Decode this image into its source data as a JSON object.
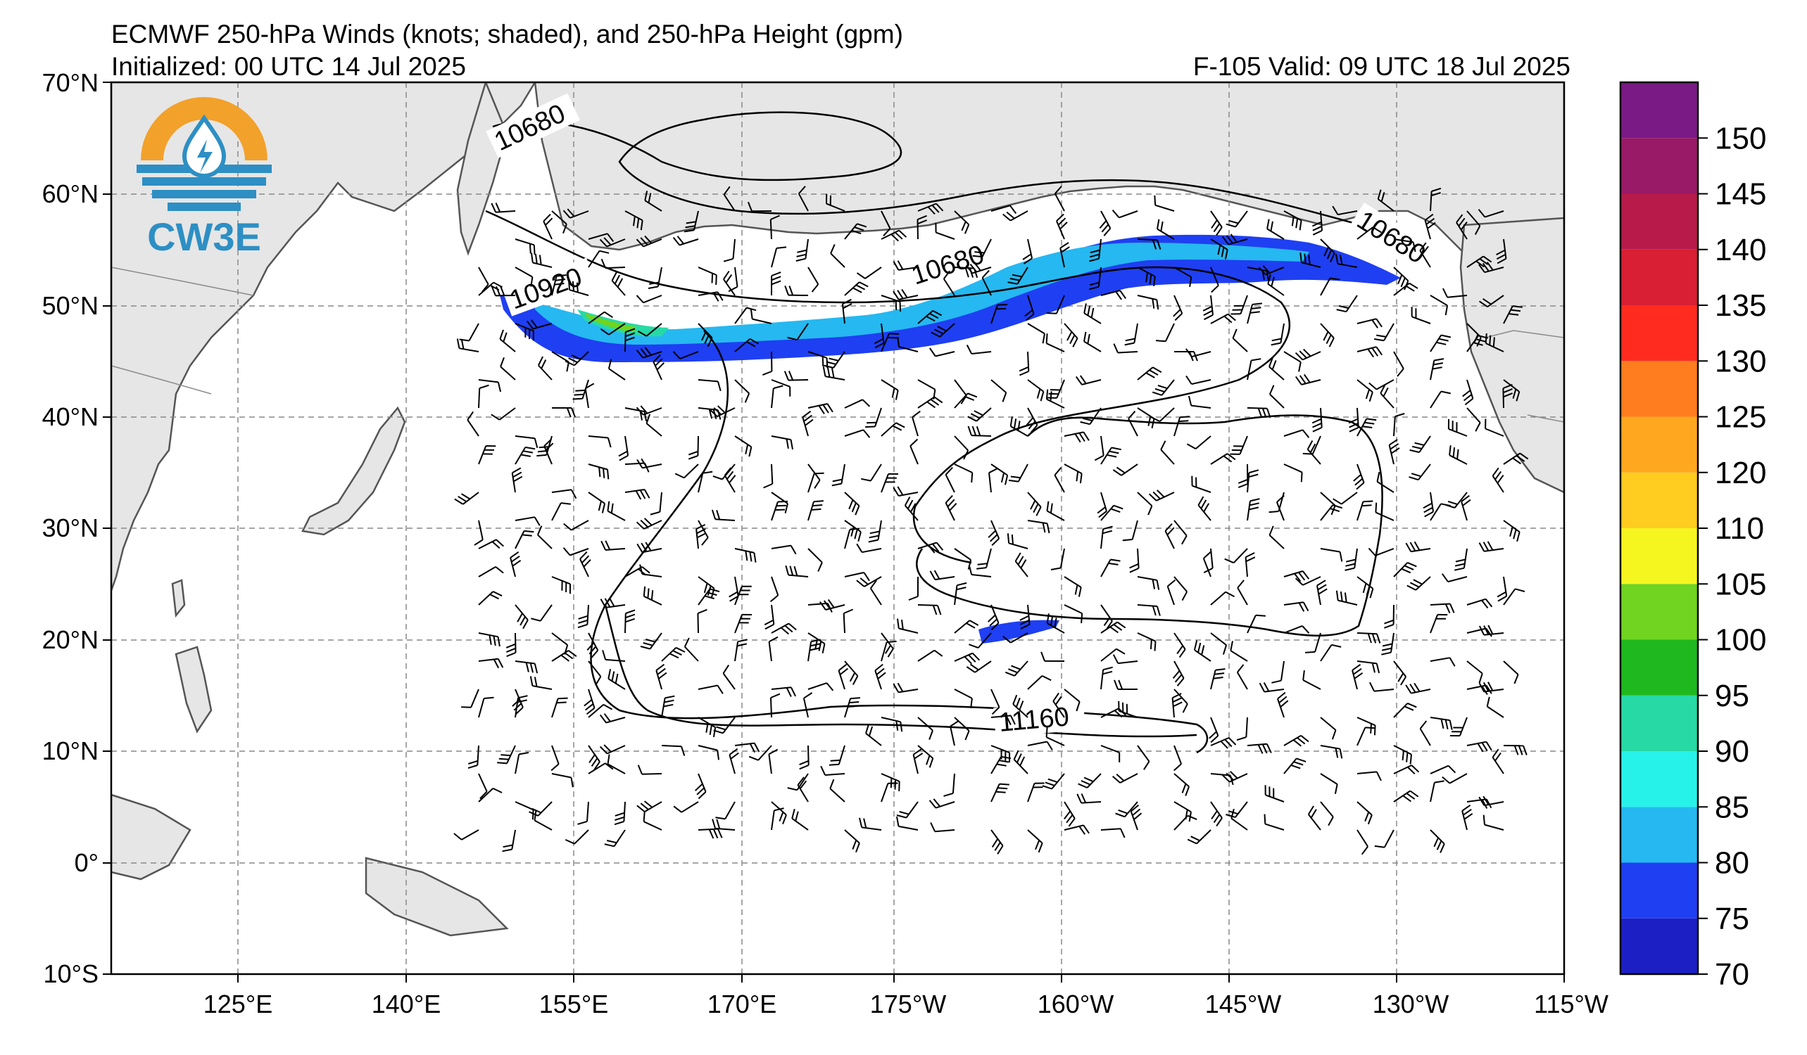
{
  "header": {
    "title": "ECMWF 250-hPa Winds (knots; shaded), and 250-hPa Height (gpm)",
    "initialized": "Initialized: 00 UTC 14 Jul 2025",
    "valid": "F-105  Valid: 09 UTC 18 Jul 2025"
  },
  "logo": {
    "text": "CW3E"
  },
  "map": {
    "lat_labels": [
      "70°N",
      "60°N",
      "50°N",
      "40°N",
      "30°N",
      "20°N",
      "10°N",
      "0°",
      "10°S"
    ],
    "lon_labels": [
      "125°E",
      "140°E",
      "155°E",
      "170°E",
      "175°W",
      "160°W",
      "145°W",
      "130°W",
      "115°W"
    ],
    "contour_labels": [
      "10680",
      "10920",
      "10680",
      "10680",
      "11160"
    ]
  },
  "colorbar": {
    "tick_labels": [
      "70",
      "75",
      "80",
      "85",
      "90",
      "95",
      "100",
      "105",
      "110",
      "120",
      "125",
      "130",
      "135",
      "140",
      "145",
      "150"
    ],
    "colors": [
      "#1c1fc4",
      "#1f3ff2",
      "#26b8f0",
      "#27f2ea",
      "#27d9a5",
      "#1fb81f",
      "#70d420",
      "#f5f520",
      "#ffcc1f",
      "#ffa81f",
      "#ff7d1f",
      "#ff2b1f",
      "#d91f33",
      "#b81a4a",
      "#991a66",
      "#7a1a85"
    ]
  }
}
